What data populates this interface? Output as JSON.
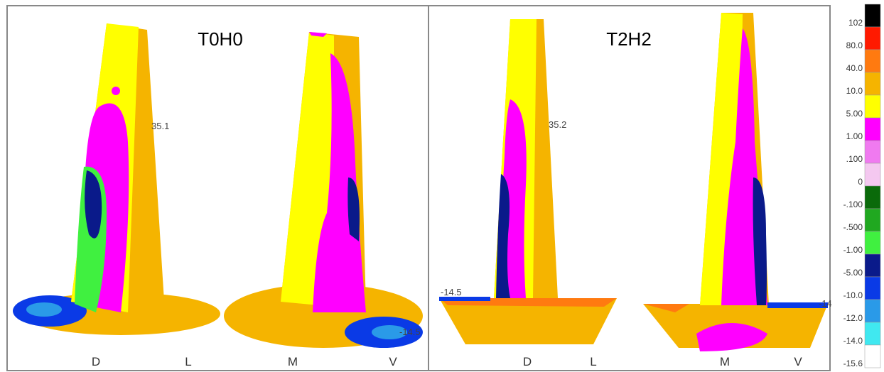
{
  "panels": [
    {
      "title": "T0H0",
      "annotations": [
        "35.1",
        "-14.5"
      ],
      "axis_labels": [
        "D",
        "L",
        "M",
        "V"
      ]
    },
    {
      "title": "T2H2",
      "annotations": [
        "35.2",
        "-14.5",
        "-14"
      ],
      "axis_labels": [
        "D",
        "L",
        "M",
        "V"
      ]
    }
  ],
  "legend": {
    "labels": [
      "102",
      "80.0",
      "40.0",
      "10.0",
      "5.00",
      "1.00",
      ".100",
      "0",
      "-.100",
      "-.500",
      "-1.00",
      "-5.00",
      "-10.0",
      "-12.0",
      "-14.0",
      "-15.6"
    ],
    "colors": [
      "#000000",
      "#ff1a00",
      "#ff7a10",
      "#f5b400",
      "#ffff00",
      "#ff00ff",
      "#f07af0",
      "#f4c8f0",
      "#0a6a0a",
      "#20a820",
      "#40f040",
      "#0a1a8a",
      "#0a3ae6",
      "#2a9ae8",
      "#40e8f0",
      "#ffffff"
    ]
  }
}
